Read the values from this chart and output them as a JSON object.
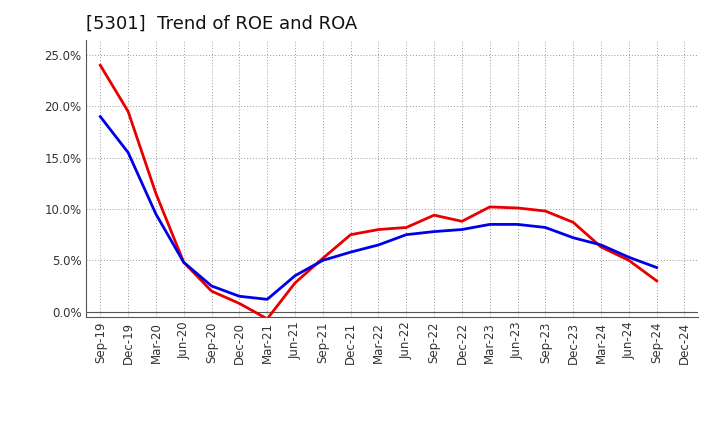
{
  "title": "[5301]  Trend of ROE and ROA",
  "x_labels": [
    "Sep-19",
    "Dec-19",
    "Mar-20",
    "Jun-20",
    "Sep-20",
    "Dec-20",
    "Mar-21",
    "Jun-21",
    "Sep-21",
    "Dec-21",
    "Mar-22",
    "Jun-22",
    "Sep-22",
    "Dec-22",
    "Mar-23",
    "Jun-23",
    "Sep-23",
    "Dec-23",
    "Mar-24",
    "Jun-24",
    "Sep-24",
    "Dec-24"
  ],
  "ROE": [
    0.24,
    0.195,
    0.115,
    0.048,
    0.02,
    0.008,
    -0.007,
    0.028,
    0.052,
    0.075,
    0.08,
    0.082,
    0.094,
    0.088,
    0.102,
    0.101,
    0.098,
    0.087,
    0.063,
    0.05,
    0.03,
    null
  ],
  "ROA": [
    0.19,
    0.155,
    0.095,
    0.048,
    0.025,
    0.015,
    0.012,
    0.035,
    0.05,
    0.058,
    0.065,
    0.075,
    0.078,
    0.08,
    0.085,
    0.085,
    0.082,
    0.072,
    0.065,
    0.053,
    0.043,
    null
  ],
  "ROE_color": "#e80000",
  "ROA_color": "#0000e8",
  "line_width": 2.0,
  "ylim": [
    -0.005,
    0.265
  ],
  "yticks": [
    0.0,
    0.05,
    0.1,
    0.15,
    0.2,
    0.25
  ],
  "ytick_labels": [
    "0.0%",
    "5.0%",
    "10.0%",
    "15.0%",
    "20.0%",
    "25.0%"
  ],
  "background_color": "#ffffff",
  "grid_color": "#999999",
  "title_fontsize": 13,
  "legend_fontsize": 10,
  "tick_fontsize": 8.5
}
